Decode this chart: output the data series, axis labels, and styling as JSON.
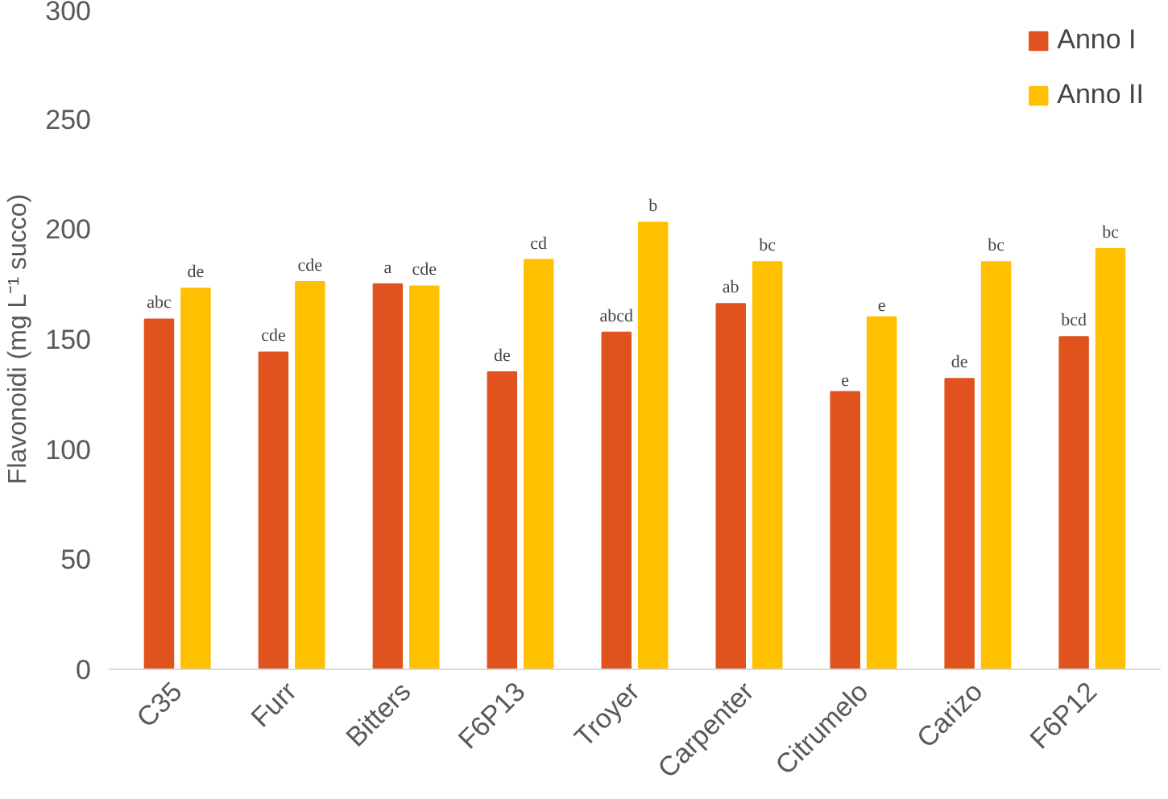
{
  "chart_data": {
    "type": "bar",
    "ylabel": "Flavonoidi (mg L⁻¹ succo)",
    "categories": [
      "C35",
      "Furr",
      "Bitters",
      "F6P13",
      "Troyer",
      "Carpenter",
      "Citrumelo",
      "Carizo",
      "F6P12"
    ],
    "series": [
      {
        "name": "Anno I",
        "color": "#e0531f",
        "values": [
          159,
          144,
          175,
          135,
          153,
          166,
          126,
          132,
          151
        ],
        "value_labels": [
          "abc",
          "cde",
          "a",
          "de",
          "abcd",
          "ab",
          "e",
          "de",
          "bcd"
        ]
      },
      {
        "name": "Anno II",
        "color": "#ffc000",
        "values": [
          173,
          176,
          174,
          186,
          203,
          185,
          160,
          185,
          191
        ],
        "value_labels": [
          "de",
          "cde",
          "cde",
          "cd",
          "b",
          "bc",
          "e",
          "bc",
          "bc"
        ]
      }
    ],
    "ylim": [
      0,
      300
    ],
    "yticks": [
      0,
      50,
      100,
      150,
      200,
      250,
      300
    ],
    "grid": false,
    "legend": "top right"
  }
}
